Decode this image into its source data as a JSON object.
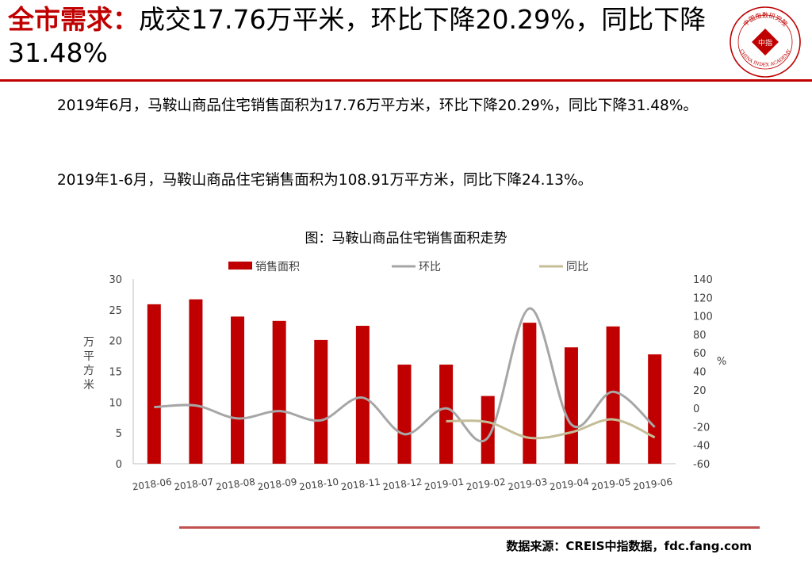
{
  "header": {
    "title_highlight": "全市需求：",
    "title_rest": "成交17.76万平米，环比下降20.29%，同比下降31.48%"
  },
  "logo": {
    "icon": "china-index-academy-seal-icon",
    "text_top": "中国指数研究院",
    "text_center": "中指",
    "text_bottom": "CHINA INDEX ACADEMY"
  },
  "body": {
    "paragraph_1": "2019年6月，马鞍山商品住宅销售面积为17.76万平方米，环比下降20.29%，同比下降31.48%。",
    "paragraph_2": "2019年1-6月，马鞍山商品住宅销售面积为108.91万平方米，同比下降24.13%。"
  },
  "chart_data": {
    "type": "bar",
    "title": "图：马鞍山商品住宅销售面积走势",
    "categories": [
      "2018-06",
      "2018-07",
      "2018-08",
      "2018-09",
      "2018-10",
      "2018-11",
      "2018-12",
      "2019-01",
      "2019-02",
      "2019-03",
      "2019-04",
      "2019-05",
      "2019-06"
    ],
    "series": [
      {
        "name": "销售面积",
        "type": "bar",
        "axis": "left",
        "color": "#c00000",
        "values": [
          25.9,
          26.7,
          23.9,
          23.2,
          20.1,
          22.4,
          16.1,
          16.1,
          11.0,
          22.9,
          18.9,
          22.3,
          17.76
        ]
      },
      {
        "name": "环比",
        "type": "line",
        "axis": "right",
        "color": "#a6a6a6",
        "values": [
          1.3,
          3.0,
          -11.0,
          -3.0,
          -13.0,
          11.5,
          -28.0,
          0.0,
          -31.7,
          108.2,
          -17.5,
          17.9,
          -20.29
        ]
      },
      {
        "name": "同比",
        "type": "line",
        "axis": "right",
        "color": "#c4bd97",
        "values": [
          null,
          null,
          null,
          null,
          null,
          null,
          null,
          -14.0,
          -15.0,
          -32.0,
          -26.0,
          -12.0,
          -31.48
        ]
      }
    ],
    "ylabel": "万平方米",
    "y2label": "%",
    "ylim": [
      0,
      30
    ],
    "y_ticks": [
      0,
      5,
      10,
      15,
      20,
      25,
      30
    ],
    "y2lim": [
      -60,
      140
    ],
    "y2_ticks": [
      -60,
      -40,
      -20,
      0,
      20,
      40,
      60,
      80,
      100,
      120,
      140
    ],
    "legend_position": "top",
    "grid": false
  },
  "footer": {
    "source": "数据来源：CREIS中指数据，fdc.fang.com"
  },
  "colors": {
    "accent_red": "#c00000",
    "mom_line": "#a6a6a6",
    "yoy_line": "#c4bd97",
    "footer_rule": "#c0504d"
  }
}
